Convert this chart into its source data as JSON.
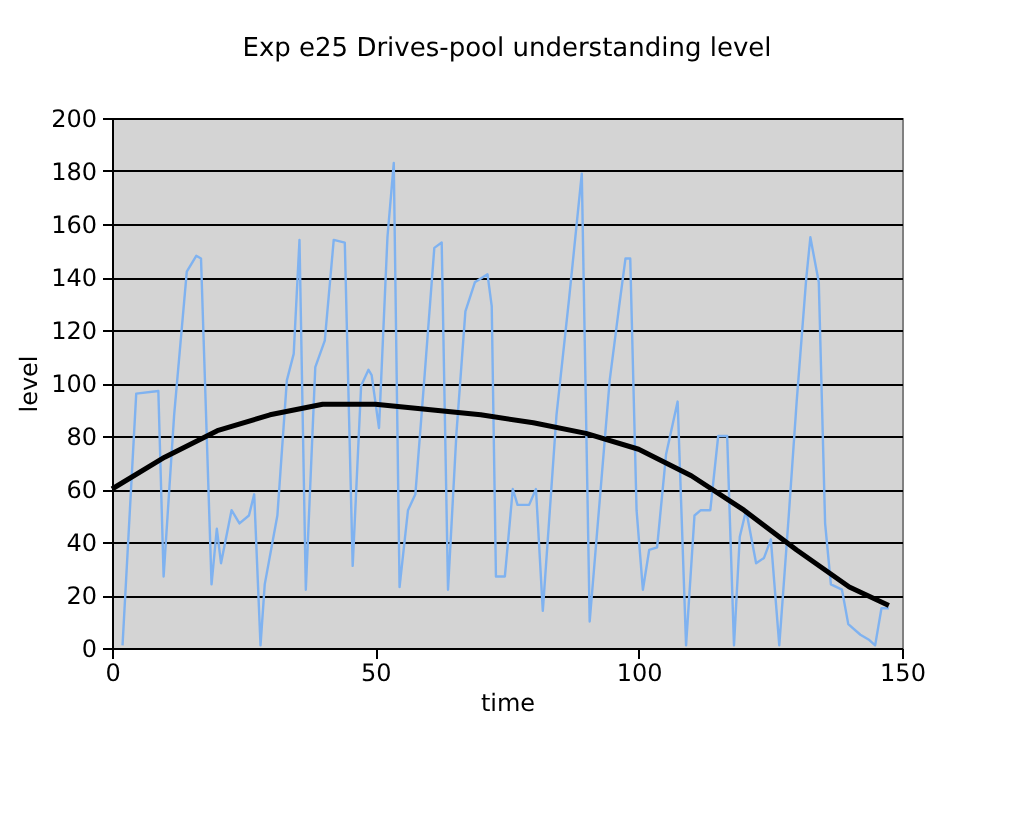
{
  "chart_data": {
    "type": "line",
    "title": "Exp e25 Drives-pool understanding level",
    "xlabel": "time",
    "ylabel": "level",
    "xlim": [
      0,
      150
    ],
    "xticks": [
      0,
      50,
      100,
      150
    ],
    "ylim": [
      0,
      200
    ],
    "yticks": [
      0,
      20,
      40,
      60,
      80,
      100,
      120,
      140,
      160,
      180,
      200
    ],
    "grid": "y",
    "marker": "none",
    "line_style": "solid",
    "series": [
      {
        "color": "#7fb2f0",
        "x": [
          2,
          4.6,
          8.8,
          9.8,
          11.8,
          14.2,
          16,
          16.9,
          18.9,
          19.9,
          20.7,
          22.7,
          24.2,
          26,
          27,
          28.2,
          29,
          31.4,
          33.2,
          34.5,
          35.6,
          36.8,
          38.6,
          40.4,
          42.1,
          44.2,
          45.7,
          47.3,
          48.7,
          49.3,
          50.7,
          52.3,
          53.5,
          54.6,
          56.2,
          57.6,
          59.4,
          61.2,
          62.6,
          63.8,
          65.4,
          67.1,
          68.9,
          71.3,
          72.1,
          72.9,
          74.6,
          76.1,
          77,
          79.2,
          80.5,
          81.8,
          84.4,
          86.8,
          89.2,
          90.7,
          92.7,
          94.5,
          96.3,
          97.5,
          98.4,
          99.6,
          100.8,
          102,
          103.5,
          105.2,
          107.4,
          109,
          110.6,
          111.8,
          113.6,
          115.1,
          116.8,
          118.1,
          119.2,
          120.4,
          122.3,
          123.8,
          125.1,
          126.7,
          128.5,
          130,
          131.8,
          132.6,
          134.2,
          135.4,
          136.5,
          138.6,
          139.8,
          142.1,
          143.8,
          144.9,
          146.1,
          147.5
        ],
        "values": [
          1,
          96,
          97,
          27,
          88,
          142,
          148,
          147,
          24,
          45,
          32,
          52,
          47,
          50,
          58,
          1,
          24,
          50,
          101,
          111,
          154,
          22,
          106,
          116,
          154,
          153,
          31,
          99,
          105,
          103,
          83,
          155,
          183,
          23,
          52,
          58,
          104,
          151,
          153,
          22,
          81,
          127,
          138,
          141,
          129,
          27,
          27,
          60,
          54,
          54,
          60,
          14,
          88,
          132,
          179,
          10,
          58,
          101,
          129,
          147,
          147,
          52,
          22,
          37,
          38,
          73,
          93,
          1,
          50,
          52,
          52,
          80,
          80,
          1,
          42,
          52,
          32,
          34,
          41,
          1,
          50,
          93,
          139,
          155,
          138,
          47,
          24,
          22,
          9,
          5,
          3,
          1,
          15,
          15
        ]
      },
      {
        "color": "#000000",
        "x": [
          0,
          10,
          20,
          30,
          40,
          50,
          60,
          70,
          80,
          90,
          100,
          110,
          120,
          130,
          140,
          147.5
        ],
        "values": [
          60,
          72,
          82,
          88,
          92,
          92,
          90,
          88,
          85,
          81,
          75,
          65,
          52,
          37,
          23,
          16
        ]
      }
    ]
  }
}
